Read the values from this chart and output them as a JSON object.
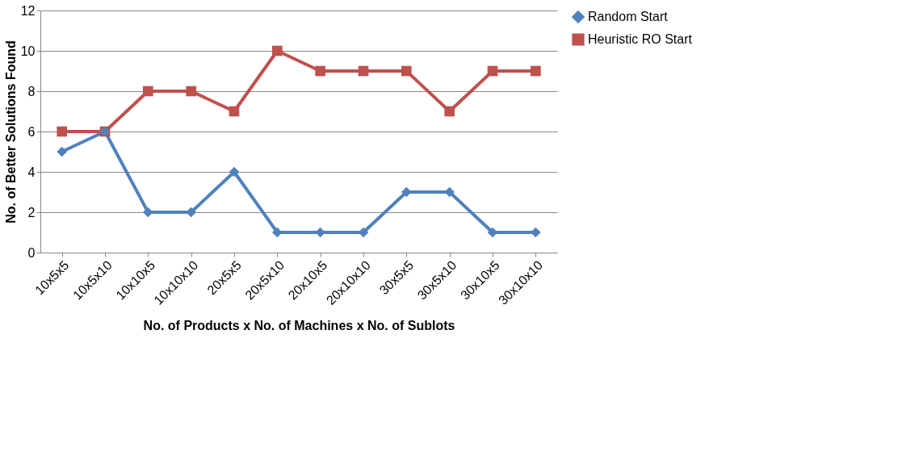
{
  "chart_data": {
    "type": "line",
    "xlabel": "No. of Products x No. of Machines x No. of Sublots",
    "ylabel": "No. of Better Solutions Found",
    "categories": [
      "10x5x5",
      "10x5x10",
      "10x10x5",
      "10x10x10",
      "20x5x5",
      "20x5x10",
      "20x10x5",
      "20x10x10",
      "30x5x5",
      "30x5x10",
      "30x10x5",
      "30x10x10"
    ],
    "series": [
      {
        "name": "Random Start",
        "color": "#4f81bd",
        "marker": "diamond",
        "values": [
          5,
          6,
          2,
          2,
          4,
          1,
          1,
          1,
          3,
          3,
          1,
          1
        ]
      },
      {
        "name": "Heuristic RO Start",
        "color": "#c0504d",
        "marker": "square",
        "values": [
          6,
          6,
          8,
          8,
          7,
          10,
          9,
          9,
          9,
          7,
          9,
          9
        ]
      }
    ],
    "ylim": [
      0,
      12
    ],
    "yticks": [
      0,
      2,
      4,
      6,
      8,
      10,
      12
    ],
    "grid": "y",
    "legend": "right",
    "line_style": "solid"
  }
}
